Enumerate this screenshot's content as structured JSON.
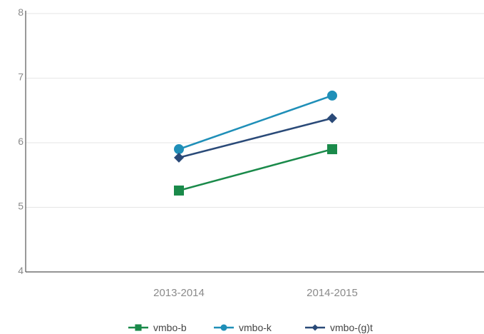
{
  "chart_data": {
    "type": "line",
    "title": "",
    "xlabel": "",
    "ylabel": "",
    "categories": [
      "2013-2014",
      "2014-2015"
    ],
    "ylim": [
      4,
      8
    ],
    "yticks": [
      "4",
      "5",
      "6",
      "7",
      "8"
    ],
    "grid": true,
    "legend_position": "bottom",
    "series": [
      {
        "name": "vmbo-b",
        "values": [
          5.26,
          5.9
        ],
        "color": "#1a8a4a",
        "marker": "square"
      },
      {
        "name": "vmbo-k",
        "values": [
          5.9,
          6.73
        ],
        "color": "#1f8fb8",
        "marker": "circle"
      },
      {
        "name": "vmbo-(g)t",
        "values": [
          5.77,
          6.38
        ],
        "color": "#2a4a78",
        "marker": "diamond"
      }
    ]
  }
}
